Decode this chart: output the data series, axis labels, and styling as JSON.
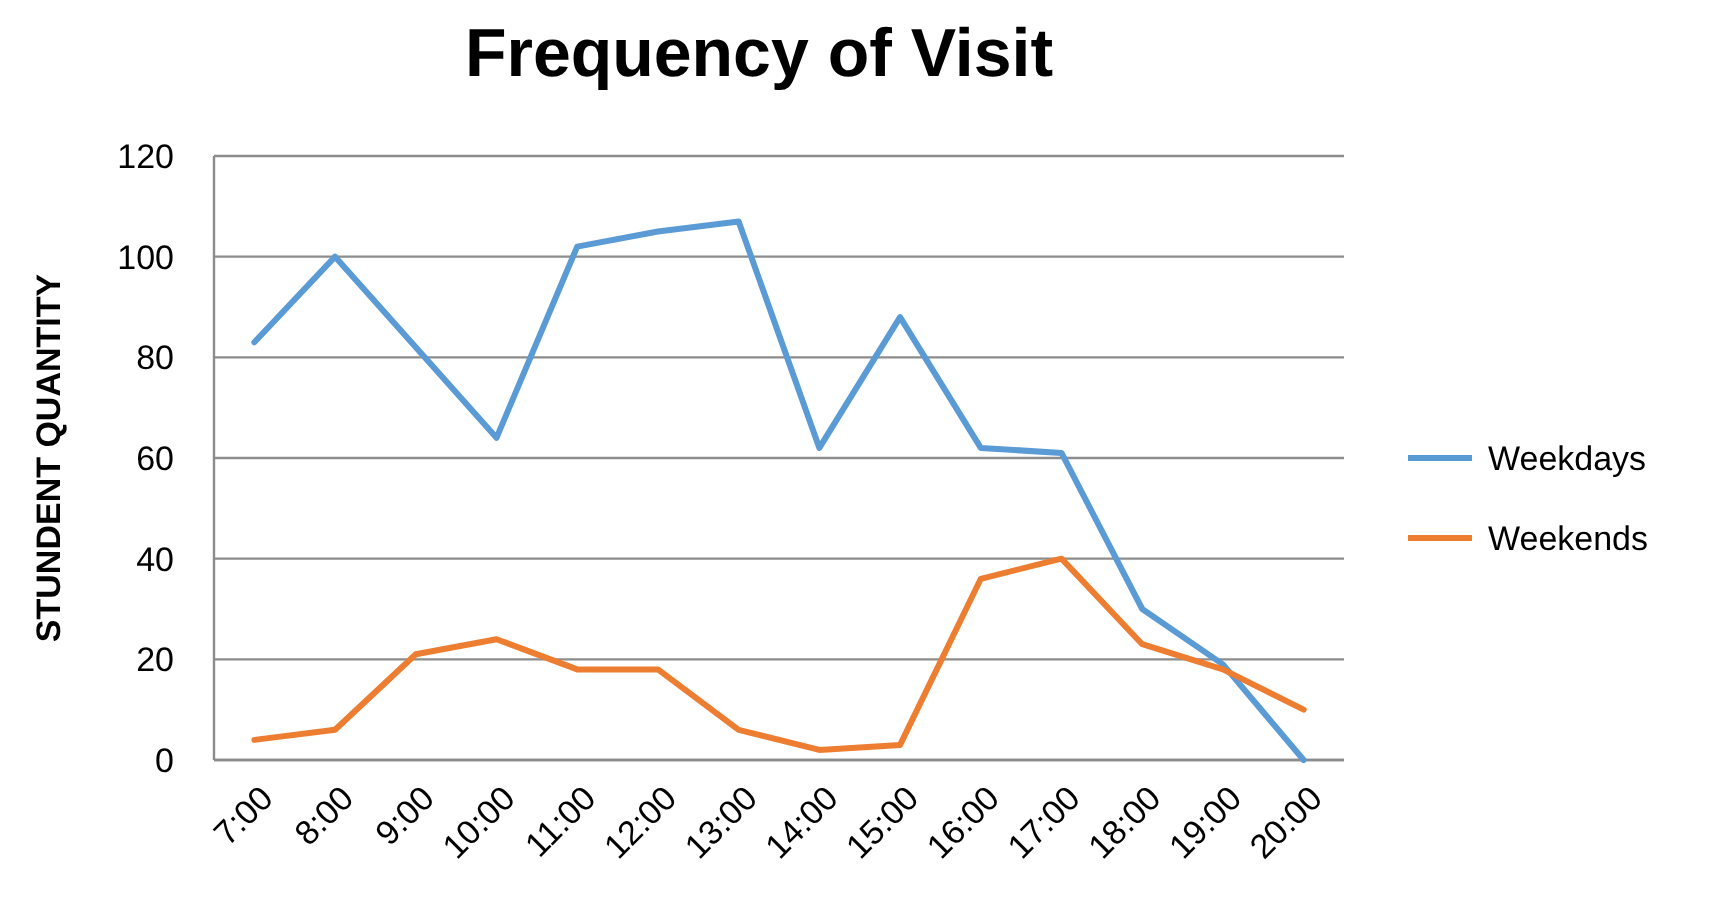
{
  "chart_data": {
    "type": "line",
    "title": "Frequency of Visit",
    "ylabel": "STUNDENT QUANTITY",
    "categories": [
      "7:00",
      "8:00",
      "9:00",
      "10:00",
      "11:00",
      "12:00",
      "13:00",
      "14:00",
      "15:00",
      "16:00",
      "17:00",
      "18:00",
      "19:00",
      "20:00"
    ],
    "series": [
      {
        "name": "Weekdays",
        "color": "#5b9bd5",
        "values": [
          83,
          100,
          82,
          64,
          102,
          105,
          107,
          62,
          88,
          62,
          61,
          30,
          19,
          0
        ]
      },
      {
        "name": "Weekends",
        "color": "#ed7d31",
        "values": [
          4,
          6,
          21,
          24,
          18,
          18,
          6,
          2,
          3,
          36,
          40,
          23,
          18,
          10
        ]
      }
    ],
    "ylim": [
      0,
      120
    ],
    "yticks": [
      0,
      20,
      40,
      60,
      80,
      100,
      120
    ],
    "grid": "y",
    "legend": "right",
    "marker": "none"
  }
}
